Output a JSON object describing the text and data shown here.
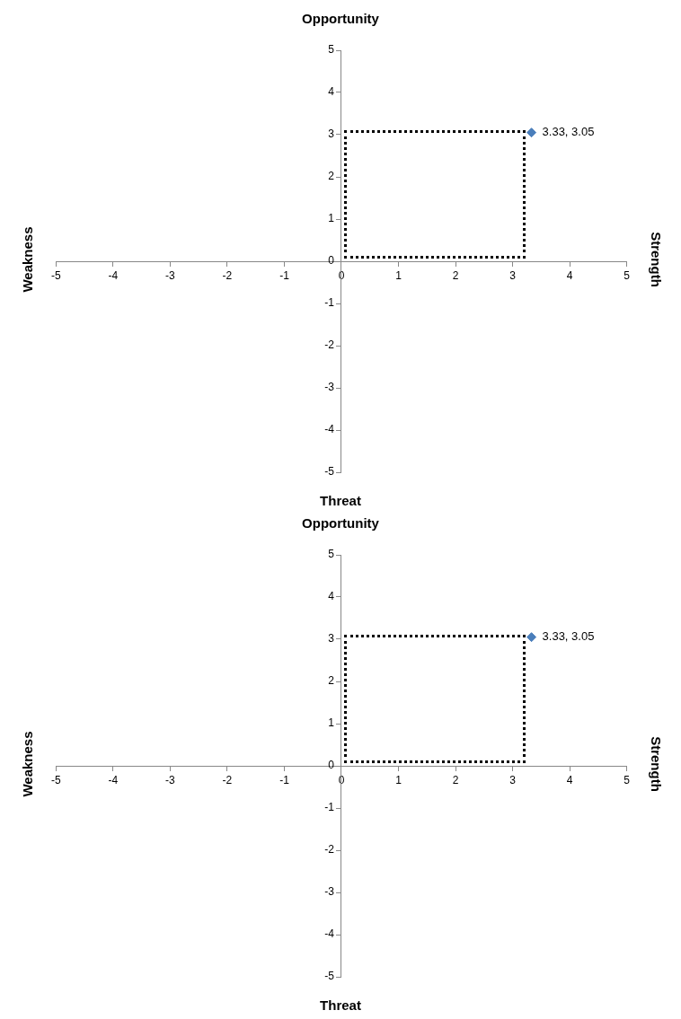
{
  "chart_data": [
    {
      "type": "scatter",
      "title": "Opportunity",
      "xlabel": "Threat",
      "ylabel": "Weakness",
      "y2label": "Strength",
      "xlim": [
        -5,
        5
      ],
      "ylim": [
        -5,
        5
      ],
      "xticks": [
        -5,
        -4,
        -3,
        -2,
        -1,
        0,
        1,
        2,
        3,
        4,
        5
      ],
      "yticks": [
        -5,
        -4,
        -3,
        -2,
        -1,
        0,
        1,
        2,
        3,
        4,
        5
      ],
      "grid": false,
      "legend": false,
      "series": [
        {
          "type": "scatter",
          "color": "#4a7ebb",
          "marker": "diamond",
          "x": [
            3.33
          ],
          "values": [
            3.05
          ],
          "value_labels": [
            "3.33, 3.05"
          ]
        }
      ]
    },
    {
      "type": "scatter",
      "title": "Opportunity",
      "xlabel": "Threat",
      "ylabel": "Weakness",
      "y2label": "Strength",
      "xlim": [
        -5,
        5
      ],
      "ylim": [
        -5,
        5
      ],
      "xticks": [
        -5,
        -4,
        -3,
        -2,
        -1,
        0,
        1,
        2,
        3,
        4,
        5
      ],
      "yticks": [
        -5,
        -4,
        -3,
        -2,
        -1,
        0,
        1,
        2,
        3,
        4,
        5
      ],
      "grid": false,
      "legend": false,
      "series": [
        {
          "type": "scatter",
          "color": "#4a7ebb",
          "marker": "diamond",
          "x": [
            3.33
          ],
          "values": [
            3.05
          ],
          "value_labels": [
            "3.33, 3.05"
          ]
        }
      ]
    }
  ]
}
